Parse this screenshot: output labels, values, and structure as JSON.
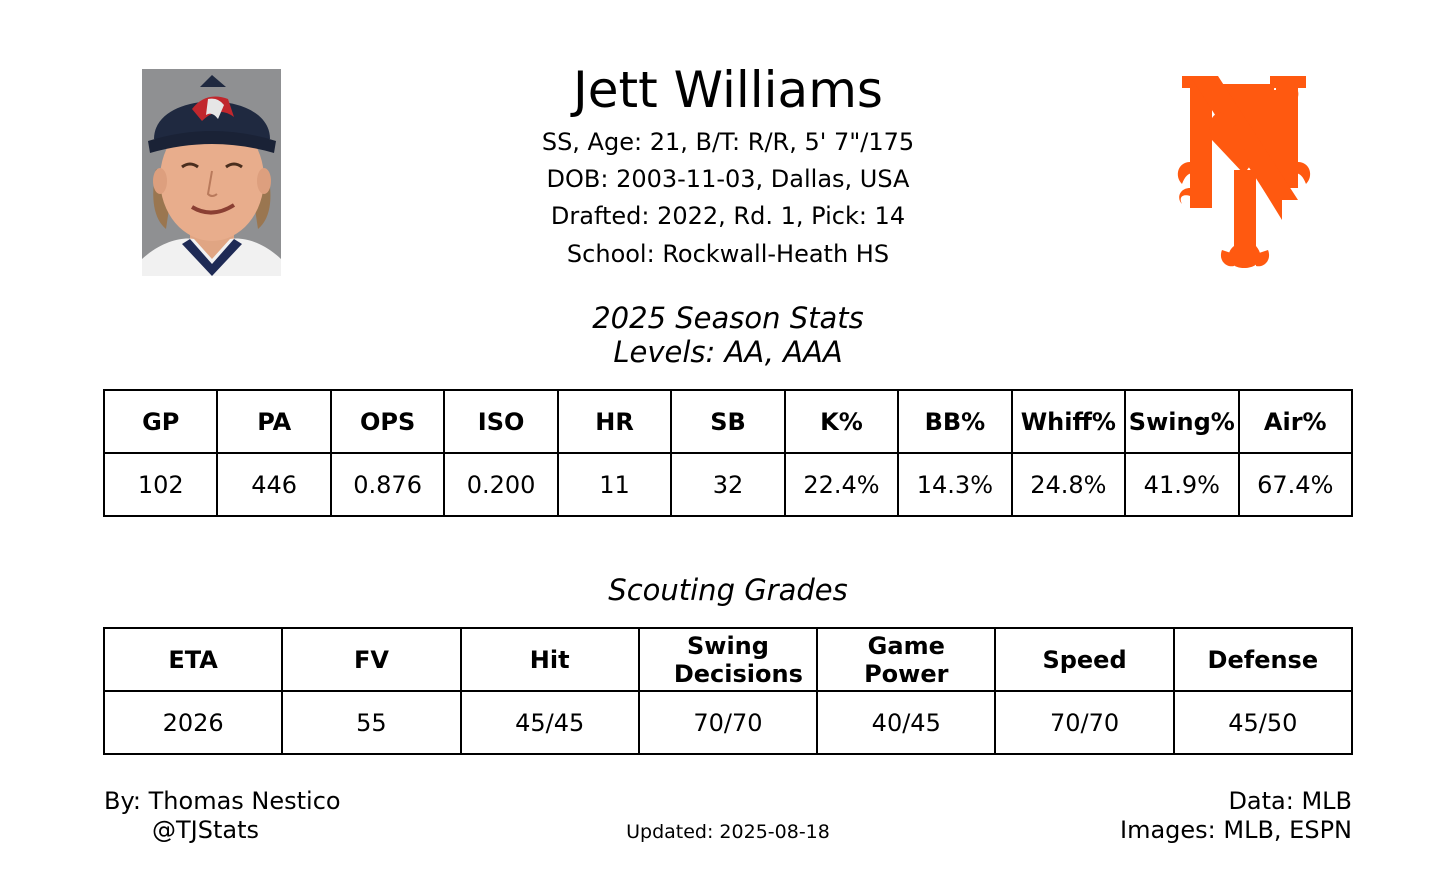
{
  "player": {
    "name": "Jett Williams",
    "line1": "SS, Age: 21, B/T: R/R, 5' 7\"/175",
    "line2": "DOB: 2003-11-03, Dallas, USA",
    "line3": "Drafted: 2022, Rd. 1, Pick: 14",
    "line4": "School: Rockwall-Heath HS"
  },
  "season": {
    "title": "2025 Season Stats",
    "levels": "Levels: AA, AAA",
    "headers": [
      "GP",
      "PA",
      "OPS",
      "ISO",
      "HR",
      "SB",
      "K%",
      "BB%",
      "Whiff%",
      "Swing%",
      "Air%"
    ],
    "values": [
      "102",
      "446",
      "0.876",
      "0.200",
      "11",
      "32",
      "22.4%",
      "14.3%",
      "24.8%",
      "41.9%",
      "67.4%"
    ]
  },
  "scouting": {
    "title": "Scouting Grades",
    "headers": [
      "ETA",
      "FV",
      "Hit",
      "Swing Decisions",
      "Game Power",
      "Speed",
      "Defense"
    ],
    "values": [
      "2026",
      "55",
      "45/45",
      "70/70",
      "40/45",
      "70/70",
      "45/50"
    ]
  },
  "footer": {
    "by": "By: Thomas Nestico",
    "handle": "@TJStats",
    "updated": "Updated: 2025-08-18",
    "data_source": "Data: MLB",
    "image_source": "Images: MLB, ESPN"
  },
  "logo": {
    "name": "ny-logo-icon",
    "color": "#ff5910"
  },
  "photo": {
    "cap_color": "#1f2940",
    "bg_color": "#8f9092"
  }
}
